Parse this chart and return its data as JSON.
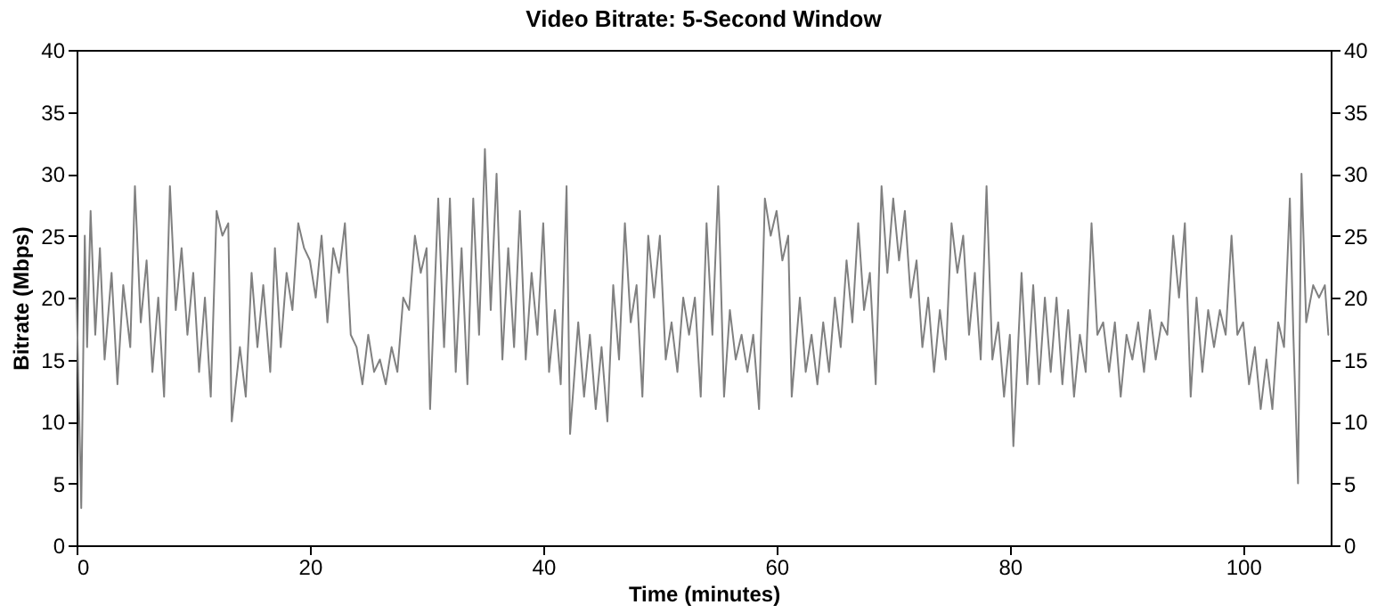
{
  "chart_data": {
    "type": "line",
    "title": "Video Bitrate: 5-Second Window",
    "xlabel": "Time (minutes)",
    "ylabel": "Bitrate (Mbps)",
    "x": [
      0.0,
      0.4,
      0.7,
      0.9,
      1.2,
      1.6,
      2.0,
      2.4,
      3.0,
      3.5,
      4.0,
      4.6,
      5.0,
      5.5,
      6.0,
      6.5,
      7.0,
      7.5,
      8.0,
      8.5,
      9.0,
      9.5,
      10.0,
      10.5,
      11.0,
      11.5,
      12.0,
      12.5,
      13.0,
      13.3,
      14.0,
      14.5,
      15.0,
      15.5,
      16.0,
      16.6,
      17.0,
      17.5,
      18.0,
      18.5,
      19.0,
      19.5,
      20.0,
      20.5,
      21.0,
      21.5,
      22.0,
      22.5,
      23.0,
      23.5,
      24.0,
      24.5,
      25.0,
      25.5,
      26.0,
      26.5,
      27.0,
      27.5,
      28.0,
      28.5,
      29.0,
      29.5,
      30.0,
      30.3,
      31.0,
      31.5,
      32.0,
      32.5,
      33.0,
      33.5,
      34.0,
      34.5,
      35.0,
      35.5,
      36.0,
      36.5,
      37.0,
      37.5,
      38.0,
      38.5,
      39.0,
      39.5,
      40.0,
      40.5,
      41.0,
      41.5,
      42.0,
      42.3,
      43.0,
      43.5,
      44.0,
      44.5,
      45.0,
      45.5,
      46.0,
      46.5,
      47.0,
      47.5,
      48.0,
      48.5,
      49.0,
      49.5,
      50.0,
      50.5,
      51.0,
      51.5,
      52.0,
      52.5,
      53.0,
      53.5,
      54.0,
      54.5,
      55.0,
      55.5,
      56.0,
      56.5,
      57.0,
      57.5,
      58.0,
      58.5,
      59.0,
      59.5,
      60.0,
      60.5,
      61.0,
      61.3,
      62.0,
      62.5,
      63.0,
      63.5,
      64.0,
      64.5,
      65.0,
      65.5,
      66.0,
      66.5,
      67.0,
      67.5,
      68.0,
      68.5,
      69.0,
      69.5,
      70.0,
      70.5,
      71.0,
      71.5,
      72.0,
      72.5,
      73.0,
      73.5,
      74.0,
      74.5,
      75.0,
      75.5,
      76.0,
      76.5,
      77.0,
      77.5,
      78.0,
      78.5,
      79.0,
      79.5,
      80.0,
      80.3,
      81.0,
      81.5,
      82.0,
      82.5,
      83.0,
      83.5,
      84.0,
      84.5,
      85.0,
      85.5,
      86.0,
      86.5,
      87.0,
      87.5,
      88.0,
      88.5,
      89.0,
      89.5,
      90.0,
      90.5,
      91.0,
      91.5,
      92.0,
      92.5,
      93.0,
      93.5,
      94.0,
      94.5,
      95.0,
      95.5,
      96.0,
      96.5,
      97.0,
      97.5,
      98.0,
      98.5,
      99.0,
      99.5,
      100.0,
      100.5,
      101.0,
      101.5,
      102.0,
      102.5,
      103.0,
      103.5,
      104.0,
      104.3,
      104.7,
      105.0,
      105.4,
      106.0,
      106.5,
      107.0,
      107.3
    ],
    "series": [
      {
        "color": "#808080",
        "values": [
          20,
          3,
          25,
          16,
          27,
          17,
          24,
          15,
          22,
          13,
          21,
          16,
          29,
          18,
          23,
          14,
          20,
          12,
          29,
          19,
          24,
          17,
          22,
          14,
          20,
          12,
          27,
          25,
          26,
          10,
          16,
          12,
          22,
          16,
          21,
          14,
          24,
          16,
          22,
          19,
          26,
          24,
          23,
          20,
          25,
          18,
          24,
          22,
          26,
          17,
          16,
          13,
          17,
          14,
          15,
          13,
          16,
          14,
          20,
          19,
          25,
          22,
          24,
          11,
          28,
          16,
          28,
          14,
          24,
          13,
          28,
          17,
          32,
          19,
          30,
          15,
          24,
          16,
          27,
          15,
          22,
          17,
          26,
          14,
          19,
          13,
          29,
          9,
          18,
          12,
          17,
          11,
          16,
          10,
          21,
          15,
          26,
          18,
          21,
          12,
          25,
          20,
          25,
          15,
          18,
          14,
          20,
          17,
          20,
          12,
          26,
          17,
          29,
          12,
          19,
          15,
          17,
          14,
          17,
          11,
          28,
          25,
          27,
          23,
          25,
          12,
          20,
          14,
          17,
          13,
          18,
          14,
          20,
          16,
          23,
          18,
          26,
          19,
          22,
          13,
          29,
          22,
          28,
          23,
          27,
          20,
          23,
          16,
          20,
          14,
          19,
          15,
          26,
          22,
          25,
          17,
          22,
          15,
          29,
          15,
          18,
          12,
          17,
          8,
          22,
          13,
          21,
          13,
          20,
          14,
          20,
          13,
          19,
          12,
          17,
          14,
          26,
          17,
          18,
          14,
          18,
          12,
          17,
          15,
          18,
          14,
          19,
          15,
          18,
          17,
          25,
          20,
          26,
          12,
          20,
          14,
          19,
          16,
          19,
          17,
          25,
          17,
          18,
          13,
          16,
          11,
          15,
          11,
          18,
          16,
          28,
          17,
          5,
          30,
          18,
          21,
          20,
          21,
          17
        ]
      }
    ],
    "xlim": [
      0,
      107.5
    ],
    "xticks": [
      0,
      20,
      40,
      60,
      80,
      100
    ],
    "ylim": [
      0,
      40
    ],
    "yticks": [
      0,
      5,
      10,
      15,
      20,
      25,
      30,
      35,
      40
    ],
    "y2lim": [
      0,
      40
    ],
    "y2ticks": [
      0,
      5,
      10,
      15,
      20,
      25,
      30,
      35,
      40
    ],
    "grid": false,
    "legend": false,
    "line_style": "solid"
  }
}
